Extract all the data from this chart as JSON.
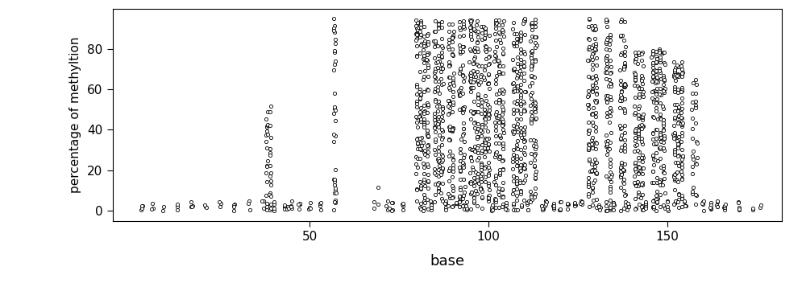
{
  "title": "",
  "xlabel": "base",
  "ylabel": "percentage of methyltion",
  "xlim": [
    -5,
    182
  ],
  "ylim": [
    -5,
    100
  ],
  "xticks": [
    50,
    100,
    150
  ],
  "yticks": [
    0,
    20,
    40,
    60,
    80
  ],
  "background_color": "#ffffff",
  "marker": "o",
  "marker_size": 3,
  "marker_color": "black",
  "marker_facecolor": "white",
  "linewidths": 0.6,
  "columns": [
    {
      "x": 3,
      "n": 4,
      "ymax": 5
    },
    {
      "x": 6,
      "n": 3,
      "ymax": 4
    },
    {
      "x": 9,
      "n": 2,
      "ymax": 3
    },
    {
      "x": 13,
      "n": 3,
      "ymax": 4
    },
    {
      "x": 17,
      "n": 4,
      "ymax": 5
    },
    {
      "x": 21,
      "n": 3,
      "ymax": 4
    },
    {
      "x": 25,
      "n": 3,
      "ymax": 5
    },
    {
      "x": 29,
      "n": 4,
      "ymax": 5
    },
    {
      "x": 33,
      "n": 3,
      "ymax": 5
    },
    {
      "x": 37,
      "n": 3,
      "ymax": 5
    },
    {
      "x": 38,
      "n": 20,
      "ymax": 52
    },
    {
      "x": 39,
      "n": 20,
      "ymax": 52
    },
    {
      "x": 40,
      "n": 4,
      "ymax": 5
    },
    {
      "x": 43,
      "n": 4,
      "ymax": 5
    },
    {
      "x": 44,
      "n": 4,
      "ymax": 5
    },
    {
      "x": 45,
      "n": 4,
      "ymax": 5
    },
    {
      "x": 47,
      "n": 4,
      "ymax": 5
    },
    {
      "x": 50,
      "n": 4,
      "ymax": 5
    },
    {
      "x": 53,
      "n": 4,
      "ymax": 5
    },
    {
      "x": 57,
      "n": 35,
      "ymax": 95
    },
    {
      "x": 68,
      "n": 2,
      "ymax": 14
    },
    {
      "x": 69,
      "n": 2,
      "ymax": 14
    },
    {
      "x": 72,
      "n": 4,
      "ymax": 5
    },
    {
      "x": 73,
      "n": 4,
      "ymax": 5
    },
    {
      "x": 76,
      "n": 4,
      "ymax": 5
    },
    {
      "x": 80,
      "n": 40,
      "ymax": 95
    },
    {
      "x": 81,
      "n": 40,
      "ymax": 95
    },
    {
      "x": 82,
      "n": 40,
      "ymax": 95
    },
    {
      "x": 83,
      "n": 40,
      "ymax": 95
    },
    {
      "x": 84,
      "n": 5,
      "ymax": 5
    },
    {
      "x": 85,
      "n": 40,
      "ymax": 95
    },
    {
      "x": 86,
      "n": 40,
      "ymax": 95
    },
    {
      "x": 87,
      "n": 40,
      "ymax": 95
    },
    {
      "x": 88,
      "n": 5,
      "ymax": 5
    },
    {
      "x": 89,
      "n": 40,
      "ymax": 95
    },
    {
      "x": 90,
      "n": 40,
      "ymax": 95
    },
    {
      "x": 91,
      "n": 5,
      "ymax": 5
    },
    {
      "x": 92,
      "n": 40,
      "ymax": 95
    },
    {
      "x": 93,
      "n": 40,
      "ymax": 95
    },
    {
      "x": 94,
      "n": 5,
      "ymax": 5
    },
    {
      "x": 95,
      "n": 40,
      "ymax": 95
    },
    {
      "x": 96,
      "n": 40,
      "ymax": 95
    },
    {
      "x": 97,
      "n": 40,
      "ymax": 95
    },
    {
      "x": 98,
      "n": 40,
      "ymax": 95
    },
    {
      "x": 99,
      "n": 40,
      "ymax": 95
    },
    {
      "x": 100,
      "n": 40,
      "ymax": 95
    },
    {
      "x": 101,
      "n": 5,
      "ymax": 5
    },
    {
      "x": 102,
      "n": 40,
      "ymax": 95
    },
    {
      "x": 103,
      "n": 40,
      "ymax": 95
    },
    {
      "x": 104,
      "n": 40,
      "ymax": 95
    },
    {
      "x": 105,
      "n": 5,
      "ymax": 5
    },
    {
      "x": 107,
      "n": 40,
      "ymax": 95
    },
    {
      "x": 108,
      "n": 40,
      "ymax": 95
    },
    {
      "x": 109,
      "n": 40,
      "ymax": 95
    },
    {
      "x": 110,
      "n": 40,
      "ymax": 95
    },
    {
      "x": 111,
      "n": 5,
      "ymax": 5
    },
    {
      "x": 112,
      "n": 40,
      "ymax": 95
    },
    {
      "x": 113,
      "n": 40,
      "ymax": 95
    },
    {
      "x": 115,
      "n": 5,
      "ymax": 5
    },
    {
      "x": 116,
      "n": 5,
      "ymax": 5
    },
    {
      "x": 118,
      "n": 5,
      "ymax": 5
    },
    {
      "x": 120,
      "n": 5,
      "ymax": 5
    },
    {
      "x": 122,
      "n": 5,
      "ymax": 5
    },
    {
      "x": 124,
      "n": 5,
      "ymax": 5
    },
    {
      "x": 126,
      "n": 5,
      "ymax": 5
    },
    {
      "x": 128,
      "n": 40,
      "ymax": 95
    },
    {
      "x": 129,
      "n": 40,
      "ymax": 95
    },
    {
      "x": 130,
      "n": 40,
      "ymax": 95
    },
    {
      "x": 131,
      "n": 5,
      "ymax": 5
    },
    {
      "x": 133,
      "n": 40,
      "ymax": 95
    },
    {
      "x": 134,
      "n": 40,
      "ymax": 95
    },
    {
      "x": 135,
      "n": 5,
      "ymax": 5
    },
    {
      "x": 137,
      "n": 40,
      "ymax": 95
    },
    {
      "x": 138,
      "n": 40,
      "ymax": 95
    },
    {
      "x": 139,
      "n": 5,
      "ymax": 5
    },
    {
      "x": 141,
      "n": 40,
      "ymax": 80
    },
    {
      "x": 142,
      "n": 40,
      "ymax": 80
    },
    {
      "x": 143,
      "n": 40,
      "ymax": 80
    },
    {
      "x": 144,
      "n": 5,
      "ymax": 5
    },
    {
      "x": 146,
      "n": 40,
      "ymax": 80
    },
    {
      "x": 147,
      "n": 40,
      "ymax": 80
    },
    {
      "x": 148,
      "n": 40,
      "ymax": 80
    },
    {
      "x": 149,
      "n": 40,
      "ymax": 80
    },
    {
      "x": 150,
      "n": 5,
      "ymax": 5
    },
    {
      "x": 152,
      "n": 40,
      "ymax": 75
    },
    {
      "x": 153,
      "n": 40,
      "ymax": 75
    },
    {
      "x": 154,
      "n": 40,
      "ymax": 75
    },
    {
      "x": 155,
      "n": 5,
      "ymax": 5
    },
    {
      "x": 157,
      "n": 15,
      "ymax": 70
    },
    {
      "x": 158,
      "n": 15,
      "ymax": 65
    },
    {
      "x": 160,
      "n": 5,
      "ymax": 5
    },
    {
      "x": 162,
      "n": 5,
      "ymax": 5
    },
    {
      "x": 164,
      "n": 5,
      "ymax": 5
    },
    {
      "x": 166,
      "n": 5,
      "ymax": 5
    },
    {
      "x": 170,
      "n": 5,
      "ymax": 5
    },
    {
      "x": 174,
      "n": 2,
      "ymax": 3
    },
    {
      "x": 176,
      "n": 2,
      "ymax": 3
    }
  ]
}
